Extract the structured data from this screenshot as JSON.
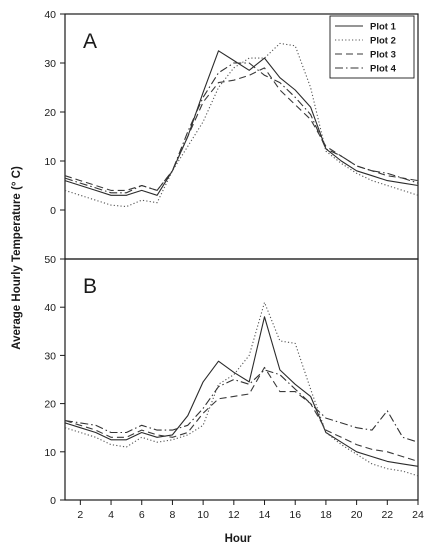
{
  "figure": {
    "ylabel": "Average Hourly Temperature (° C)",
    "xlabel": "Hour",
    "legend": {
      "placement": "top-right",
      "entries": [
        {
          "label": "Plot 1",
          "dash": "solid"
        },
        {
          "label": "Plot 2",
          "dash": "dotted"
        },
        {
          "label": "Plot 3",
          "dash": "dashed"
        },
        {
          "label": "Plot 4",
          "dash": "dash-dot"
        }
      ]
    }
  },
  "chart_data": [
    {
      "type": "line",
      "panel_label": "A",
      "xlabel": "Hour",
      "ylabel": "Average Hourly Temperature (° C)",
      "xlim": [
        1,
        24
      ],
      "ylim": [
        -10,
        40
      ],
      "yticks": [
        0,
        10,
        20,
        30,
        40
      ],
      "x": [
        1,
        2,
        3,
        4,
        5,
        6,
        7,
        8,
        9,
        10,
        11,
        12,
        13,
        14,
        15,
        16,
        17,
        18,
        19,
        20,
        21,
        22,
        23,
        24
      ],
      "series": [
        {
          "name": "Plot 1",
          "values": [
            6,
            5,
            4,
            3,
            3,
            4,
            3,
            8,
            15,
            24,
            32.5,
            30.5,
            28.5,
            31,
            27,
            24.5,
            21,
            12.5,
            10,
            8,
            7,
            6,
            5.5,
            5
          ]
        },
        {
          "name": "Plot 2",
          "values": [
            4,
            3,
            2,
            1,
            0.7,
            2,
            1.5,
            8,
            13,
            18,
            25,
            29,
            31,
            31,
            34,
            33.5,
            25,
            12,
            9.5,
            7.5,
            6,
            5,
            4,
            3
          ]
        },
        {
          "name": "Plot 3",
          "values": [
            7,
            6,
            5,
            4,
            4,
            5,
            4,
            8,
            15,
            22,
            26,
            26.5,
            27.5,
            29,
            24.5,
            21.5,
            18.5,
            13,
            11,
            9,
            8,
            7,
            6.5,
            6
          ]
        },
        {
          "name": "Plot 4",
          "values": [
            6.5,
            5.5,
            4.5,
            3.5,
            3.5,
            5,
            4,
            8,
            16,
            23,
            28,
            30,
            30,
            27.5,
            26,
            23,
            19.5,
            12.5,
            11,
            9,
            8,
            7.5,
            6.5,
            5.5
          ]
        }
      ]
    },
    {
      "type": "line",
      "panel_label": "B",
      "xlabel": "Hour",
      "ylabel": "Average Hourly Temperature (° C)",
      "xlim": [
        1,
        24
      ],
      "ylim": [
        0,
        50
      ],
      "yticks": [
        0,
        10,
        20,
        30,
        40,
        50
      ],
      "xticks": [
        2,
        4,
        6,
        8,
        10,
        12,
        14,
        16,
        18,
        20,
        22,
        24
      ],
      "x": [
        1,
        2,
        3,
        4,
        5,
        6,
        7,
        8,
        9,
        10,
        11,
        12,
        13,
        14,
        15,
        16,
        17,
        18,
        19,
        20,
        21,
        22,
        23,
        24
      ],
      "series": [
        {
          "name": "Plot 1",
          "values": [
            16,
            15,
            14,
            12.5,
            12.5,
            14,
            13,
            13.5,
            17.5,
            24.5,
            28.8,
            26.5,
            24.5,
            38,
            27,
            24,
            21.5,
            14,
            12,
            10,
            9,
            8,
            7.5,
            7
          ]
        },
        {
          "name": "Plot 2",
          "values": [
            15,
            14,
            13,
            11.5,
            11,
            13,
            12,
            12.5,
            13.5,
            15.5,
            24,
            26,
            30,
            41,
            33,
            32.5,
            23,
            14,
            11.5,
            9.5,
            7.5,
            6.5,
            6,
            5
          ]
        },
        {
          "name": "Plot 3",
          "values": [
            16.5,
            15.5,
            14.5,
            13,
            13,
            14.5,
            13.5,
            13,
            14,
            18,
            21,
            21.5,
            22,
            27.5,
            22.5,
            22.5,
            20,
            14.5,
            13,
            11.5,
            10.5,
            10,
            9,
            8
          ]
        },
        {
          "name": "Plot 4",
          "values": [
            16.5,
            16,
            15.5,
            14,
            14,
            15.5,
            14.5,
            14.5,
            15.5,
            19,
            23.5,
            25,
            24,
            27,
            26,
            23,
            20,
            17,
            16,
            15,
            14.5,
            18.5,
            13,
            12
          ]
        }
      ]
    }
  ]
}
